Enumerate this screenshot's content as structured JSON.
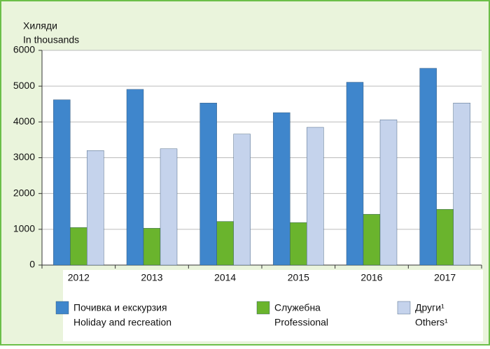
{
  "chart_data": {
    "type": "bar",
    "y_label": "Хиляди",
    "y_label_en": "In thousands",
    "categories": [
      "2012",
      "2013",
      "2014",
      "2015",
      "2016",
      "2017"
    ],
    "series": [
      {
        "name": "Почивка и екскурзия",
        "name_en": "Holiday and recreation",
        "color": "#3f86cc",
        "values": [
          4620,
          4910,
          4530,
          4260,
          5110,
          5500
        ]
      },
      {
        "name": "Служебна",
        "name_en": "Professional",
        "color": "#6ab42d",
        "values": [
          1050,
          1030,
          1220,
          1190,
          1420,
          1560
        ]
      },
      {
        "name": "Други¹",
        "name_en": "Others¹",
        "color": "#c5d3ec",
        "values": [
          3200,
          3250,
          3660,
          3850,
          4060,
          4530
        ]
      }
    ],
    "ylim": [
      0,
      6000
    ],
    "yticks": [
      0,
      1000,
      2000,
      3000,
      4000,
      5000,
      6000
    ],
    "grid": true
  }
}
